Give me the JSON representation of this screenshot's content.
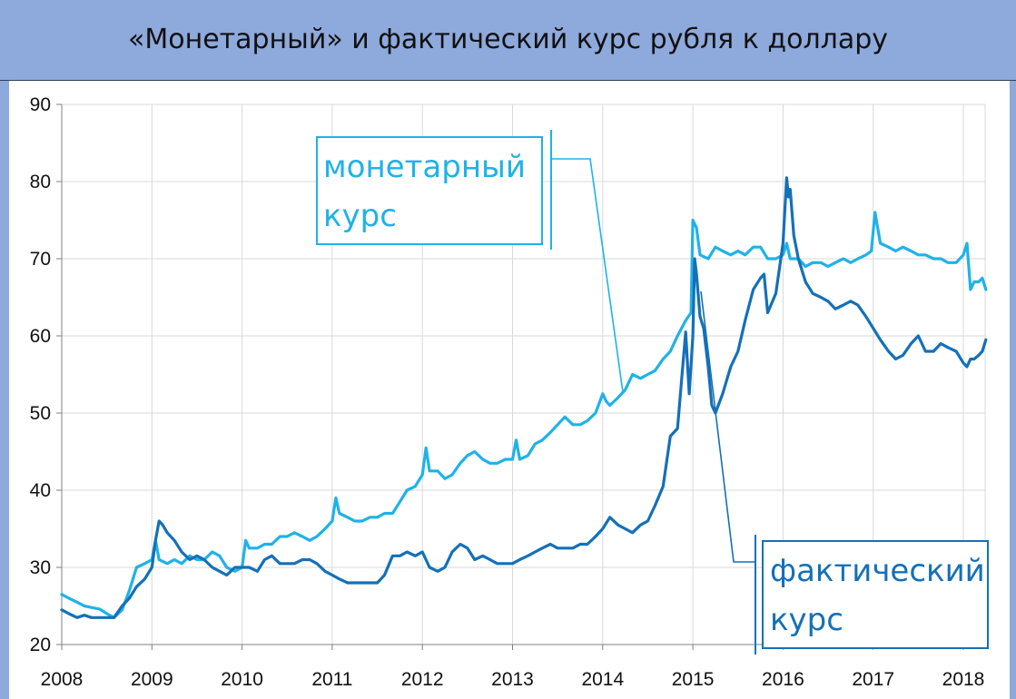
{
  "title": "«Монетарный» и фактический курс рубля к доллару",
  "colors": {
    "background": "#8EA9DB",
    "monetary": "#1FB2E8",
    "actual": "#1470B8",
    "grid": "#D9D9D9"
  },
  "chart_data": {
    "type": "line",
    "xlim": [
      2008,
      2018.3
    ],
    "ylim": [
      20,
      90
    ],
    "x_ticks": [
      "2008",
      "2009",
      "2010",
      "2011",
      "2012",
      "2013",
      "2014",
      "2015",
      "2016",
      "2017",
      "2018"
    ],
    "y_ticks": [
      "20",
      "30",
      "40",
      "50",
      "60",
      "70",
      "80",
      "90"
    ],
    "grid": true,
    "annotations": [
      {
        "lines": [
          "монетарный",
          "курс"
        ],
        "series": "monetary"
      },
      {
        "lines": [
          "фактический",
          "курс"
        ],
        "series": "actual"
      }
    ],
    "series": [
      {
        "label": "monetary",
        "x": [
          2008.0,
          2008.08,
          2008.17,
          2008.25,
          2008.33,
          2008.42,
          2008.5,
          2008.58,
          2008.67,
          2008.75,
          2008.83,
          2008.92,
          2009.0,
          2009.04,
          2009.08,
          2009.17,
          2009.25,
          2009.33,
          2009.42,
          2009.5,
          2009.58,
          2009.67,
          2009.75,
          2009.83,
          2009.92,
          2010.0,
          2010.04,
          2010.08,
          2010.17,
          2010.25,
          2010.33,
          2010.42,
          2010.5,
          2010.58,
          2010.67,
          2010.75,
          2010.83,
          2010.92,
          2011.0,
          2011.04,
          2011.08,
          2011.17,
          2011.25,
          2011.33,
          2011.42,
          2011.5,
          2011.58,
          2011.67,
          2011.75,
          2011.83,
          2011.92,
          2012.0,
          2012.04,
          2012.08,
          2012.17,
          2012.25,
          2012.33,
          2012.42,
          2012.5,
          2012.58,
          2012.67,
          2012.75,
          2012.83,
          2012.92,
          2013.0,
          2013.04,
          2013.08,
          2013.17,
          2013.25,
          2013.33,
          2013.42,
          2013.5,
          2013.58,
          2013.67,
          2013.75,
          2013.83,
          2013.92,
          2014.0,
          2014.04,
          2014.08,
          2014.17,
          2014.25,
          2014.33,
          2014.42,
          2014.5,
          2014.58,
          2014.67,
          2014.75,
          2014.83,
          2014.92,
          2014.98,
          2015.0,
          2015.04,
          2015.08,
          2015.17,
          2015.25,
          2015.33,
          2015.42,
          2015.5,
          2015.58,
          2015.67,
          2015.75,
          2015.83,
          2015.92,
          2016.0,
          2016.04,
          2016.08,
          2016.17,
          2016.25,
          2016.33,
          2016.42,
          2016.5,
          2016.58,
          2016.67,
          2016.75,
          2016.83,
          2016.92,
          2016.98,
          2017.02,
          2017.08,
          2017.17,
          2017.25,
          2017.33,
          2017.42,
          2017.5,
          2017.58,
          2017.67,
          2017.75,
          2017.83,
          2017.92,
          2018.0,
          2018.04,
          2018.08,
          2018.12,
          2018.17,
          2018.21,
          2018.25
        ],
        "y": [
          26.5,
          26.0,
          25.5,
          25.0,
          24.8,
          24.6,
          24.0,
          23.5,
          24.5,
          27.0,
          30.0,
          30.5,
          31.0,
          33.5,
          31.0,
          30.5,
          31.0,
          30.5,
          31.5,
          31.0,
          31.0,
          32.0,
          31.5,
          30.0,
          29.5,
          30.0,
          33.5,
          32.5,
          32.5,
          33.0,
          33.0,
          34.0,
          34.0,
          34.5,
          34.0,
          33.5,
          34.0,
          35.0,
          36.0,
          39.0,
          37.0,
          36.5,
          36.0,
          36.0,
          36.5,
          36.5,
          37.0,
          37.0,
          38.5,
          40.0,
          40.5,
          42.0,
          45.5,
          42.5,
          42.5,
          41.5,
          42.0,
          43.5,
          44.5,
          45.0,
          44.0,
          43.5,
          43.5,
          44.0,
          44.0,
          46.5,
          44.0,
          44.5,
          46.0,
          46.5,
          47.5,
          48.5,
          49.5,
          48.5,
          48.5,
          49.0,
          50.0,
          52.5,
          51.5,
          51.0,
          52.0,
          53.0,
          55.0,
          54.5,
          55.0,
          55.5,
          57.0,
          58.0,
          60.0,
          62.0,
          63.0,
          75.0,
          74.0,
          70.5,
          70.0,
          71.5,
          71.0,
          70.5,
          71.0,
          70.5,
          71.5,
          71.5,
          70.0,
          70.0,
          70.5,
          72.0,
          70.0,
          70.0,
          69.0,
          69.5,
          69.5,
          69.0,
          69.5,
          70.0,
          69.5,
          70.0,
          70.5,
          71.0,
          76.0,
          72.0,
          71.5,
          71.0,
          71.5,
          71.0,
          70.5,
          70.5,
          70.0,
          70.0,
          69.5,
          69.5,
          70.5,
          72.0,
          66.0,
          67.0,
          67.0,
          67.5,
          66.0
        ]
      },
      {
        "label": "actual",
        "x": [
          2008.0,
          2008.08,
          2008.17,
          2008.25,
          2008.33,
          2008.42,
          2008.5,
          2008.58,
          2008.67,
          2008.75,
          2008.83,
          2008.92,
          2009.0,
          2009.04,
          2009.08,
          2009.12,
          2009.17,
          2009.25,
          2009.33,
          2009.42,
          2009.5,
          2009.58,
          2009.67,
          2009.75,
          2009.83,
          2009.92,
          2010.0,
          2010.08,
          2010.17,
          2010.25,
          2010.33,
          2010.42,
          2010.5,
          2010.58,
          2010.67,
          2010.75,
          2010.83,
          2010.92,
          2011.0,
          2011.08,
          2011.17,
          2011.25,
          2011.33,
          2011.42,
          2011.5,
          2011.58,
          2011.67,
          2011.75,
          2011.83,
          2011.92,
          2012.0,
          2012.08,
          2012.17,
          2012.25,
          2012.33,
          2012.42,
          2012.5,
          2012.58,
          2012.67,
          2012.75,
          2012.83,
          2012.92,
          2013.0,
          2013.08,
          2013.17,
          2013.25,
          2013.33,
          2013.42,
          2013.5,
          2013.58,
          2013.67,
          2013.75,
          2013.83,
          2013.92,
          2014.0,
          2014.08,
          2014.17,
          2014.25,
          2014.33,
          2014.42,
          2014.5,
          2014.58,
          2014.67,
          2014.75,
          2014.83,
          2014.88,
          2014.92,
          2014.96,
          2015.0,
          2015.02,
          2015.04,
          2015.08,
          2015.12,
          2015.17,
          2015.21,
          2015.25,
          2015.33,
          2015.42,
          2015.5,
          2015.58,
          2015.67,
          2015.75,
          2015.79,
          2015.83,
          2015.92,
          2016.0,
          2016.04,
          2016.06,
          2016.08,
          2016.12,
          2016.17,
          2016.25,
          2016.33,
          2016.42,
          2016.5,
          2016.58,
          2016.67,
          2016.75,
          2016.83,
          2016.92,
          2017.0,
          2017.08,
          2017.17,
          2017.25,
          2017.33,
          2017.42,
          2017.5,
          2017.58,
          2017.67,
          2017.75,
          2017.83,
          2017.92,
          2018.0,
          2018.04,
          2018.08,
          2018.12,
          2018.17,
          2018.21,
          2018.25
        ],
        "y": [
          24.5,
          24.0,
          23.5,
          23.8,
          23.5,
          23.5,
          23.5,
          23.5,
          25.0,
          26.0,
          27.5,
          28.5,
          30.0,
          33.5,
          36.0,
          35.5,
          34.5,
          33.5,
          32.0,
          31.0,
          31.5,
          31.0,
          30.0,
          29.5,
          29.0,
          30.0,
          30.0,
          30.0,
          29.5,
          31.0,
          31.5,
          30.5,
          30.5,
          30.5,
          31.0,
          31.0,
          30.5,
          29.5,
          29.0,
          28.5,
          28.0,
          28.0,
          28.0,
          28.0,
          28.0,
          29.0,
          31.5,
          31.5,
          32.0,
          31.5,
          32.0,
          30.0,
          29.5,
          30.0,
          32.0,
          33.0,
          32.5,
          31.0,
          31.5,
          31.0,
          30.5,
          30.5,
          30.5,
          31.0,
          31.5,
          32.0,
          32.5,
          33.0,
          32.5,
          32.5,
          32.5,
          33.0,
          33.0,
          34.0,
          35.0,
          36.5,
          35.5,
          35.0,
          34.5,
          35.5,
          36.0,
          38.0,
          40.5,
          47.0,
          48.0,
          55.0,
          60.5,
          52.5,
          60.0,
          70.0,
          68.0,
          62.5,
          61.0,
          56.0,
          51.0,
          50.0,
          52.5,
          56.0,
          58.0,
          62.0,
          66.0,
          67.5,
          68.0,
          63.0,
          65.5,
          72.0,
          80.5,
          78.0,
          79.0,
          73.0,
          70.0,
          67.0,
          65.5,
          65.0,
          64.5,
          63.5,
          64.0,
          64.5,
          64.0,
          62.5,
          61.0,
          59.5,
          58.0,
          57.0,
          57.5,
          59.0,
          60.0,
          58.0,
          58.0,
          59.0,
          58.5,
          58.0,
          56.5,
          56.0,
          57.0,
          57.0,
          57.5,
          58.0,
          59.5
        ]
      }
    ]
  }
}
